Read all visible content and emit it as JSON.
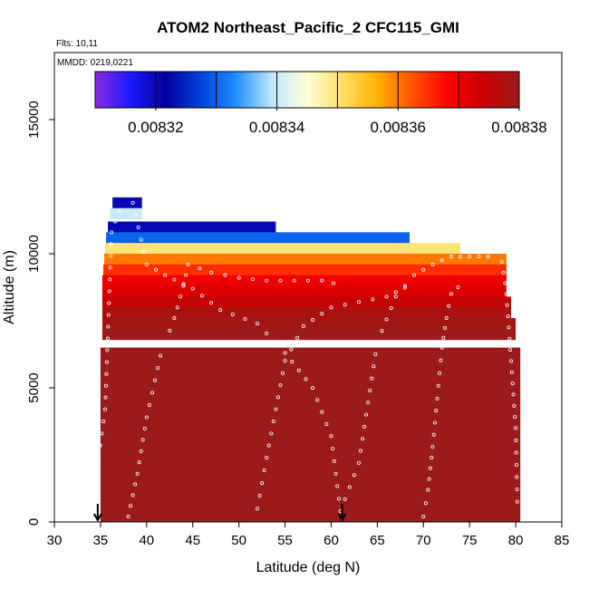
{
  "chart_data": {
    "type": "heatmap",
    "title": "ATOM2 Northeast_Pacific_2 CFC115_GMI",
    "annotations": [
      "Flts: 10,11",
      "MMDD: 0219,0221"
    ],
    "xlabel": "Latitude (deg N)",
    "ylabel": "Altitude (m)",
    "xlim": [
      30,
      85
    ],
    "ylim": [
      0,
      17500
    ],
    "xticks": [
      30,
      35,
      40,
      45,
      50,
      55,
      60,
      65,
      70,
      75,
      80,
      85
    ],
    "yticks": [
      0,
      5000,
      10000,
      15000
    ],
    "grid": false,
    "colorbar": {
      "placement": "top",
      "range": [
        0.00831,
        0.00838
      ],
      "tick_values": [
        0.00832,
        0.00834,
        0.00836,
        0.00838
      ],
      "tick_labels": [
        "0.00832",
        "0.00834",
        "0.00836",
        "0.00838"
      ],
      "colors": [
        "#8a2be2",
        "#1a1aff",
        "#00009a",
        "#0044dd",
        "#1f8fff",
        "#bfe8ff",
        "#ffffd8",
        "#ffe066",
        "#ffb000",
        "#ff5000",
        "#ff0000",
        "#c80000",
        "#9b1b1b"
      ]
    },
    "bulk_value": 0.00838,
    "bulk_region": {
      "lat_min": 35,
      "lat_max": 80.5,
      "alt_min": 0,
      "alt_max": 6500
    },
    "profile_bands": [
      {
        "alt": 11900,
        "lat_min": 36.3,
        "lat_max": 39.5,
        "value": 0.00832
      },
      {
        "alt": 11500,
        "lat_min": 36,
        "lat_max": 39.5,
        "value": 0.00834
      },
      {
        "alt": 11000,
        "lat_min": 35.8,
        "lat_max": 54,
        "value": 0.00832
      },
      {
        "alt": 10600,
        "lat_min": 35.6,
        "lat_max": 68.5,
        "value": 0.00833
      },
      {
        "alt": 10200,
        "lat_min": 35.5,
        "lat_max": 74,
        "value": 0.00835
      },
      {
        "alt": 9800,
        "lat_min": 35.4,
        "lat_max": 79,
        "value": 0.00836
      },
      {
        "alt": 9400,
        "lat_min": 35.3,
        "lat_max": 79,
        "value": 0.008365
      },
      {
        "alt": 9000,
        "lat_min": 35.2,
        "lat_max": 79,
        "value": 0.00837
      },
      {
        "alt": 8600,
        "lat_min": 35.2,
        "lat_max": 79,
        "value": 0.008372
      },
      {
        "alt": 8200,
        "lat_min": 35.2,
        "lat_max": 79.5,
        "value": 0.008375
      },
      {
        "alt": 7800,
        "lat_min": 35.2,
        "lat_max": 79.5,
        "value": 0.008378
      },
      {
        "alt": 7400,
        "lat_min": 35.2,
        "lat_max": 80,
        "value": 0.008379
      },
      {
        "alt": 7000,
        "lat_min": 35.2,
        "lat_max": 80,
        "value": 0.00838
      }
    ],
    "flight_tracks": [
      {
        "points": [
          [
            34.8,
            2400
          ],
          [
            35.5,
            4200
          ],
          [
            36.2,
            10800
          ],
          [
            37,
            11600
          ],
          [
            38.5,
            11900
          ],
          [
            40,
            9600
          ],
          [
            42,
            9200
          ],
          [
            45,
            8700
          ],
          [
            48,
            7900
          ],
          [
            52,
            7400
          ],
          [
            55,
            6300
          ],
          [
            58,
            5000
          ],
          [
            60,
            3200
          ],
          [
            61,
            400
          ]
        ]
      },
      {
        "points": [
          [
            61,
            400
          ],
          [
            63,
            2200
          ],
          [
            65,
            6700
          ],
          [
            67,
            8400
          ],
          [
            69,
            9200
          ],
          [
            71,
            9600
          ],
          [
            73,
            9900
          ],
          [
            75,
            9900
          ],
          [
            77,
            9900
          ],
          [
            78.5,
            9700
          ],
          [
            79,
            8500
          ],
          [
            79.5,
            6000
          ],
          [
            80,
            3500
          ],
          [
            80.2,
            300
          ]
        ]
      },
      {
        "points": [
          [
            38,
            200
          ],
          [
            39,
            1800
          ],
          [
            40,
            3900
          ],
          [
            41.5,
            6200
          ],
          [
            43,
            7600
          ],
          [
            44,
            8800
          ],
          [
            44.5,
            9600
          ],
          [
            47,
            9300
          ],
          [
            50,
            9100
          ],
          [
            53,
            9000
          ],
          [
            56,
            9000
          ],
          [
            59,
            9000
          ],
          [
            61.5,
            8800
          ]
        ]
      },
      {
        "points": [
          [
            70,
            200
          ],
          [
            70.5,
            1200
          ],
          [
            71,
            2800
          ],
          [
            71.5,
            4600
          ],
          [
            72,
            6500
          ],
          [
            72.5,
            7600
          ],
          [
            73,
            8500
          ],
          [
            74.5,
            9000
          ]
        ]
      },
      {
        "points": [
          [
            52,
            500
          ],
          [
            53,
            2400
          ],
          [
            54,
            4200
          ],
          [
            55,
            6000
          ],
          [
            57,
            7300
          ],
          [
            60,
            8000
          ],
          [
            63,
            8200
          ],
          [
            66,
            8400
          ],
          [
            69,
            8900
          ]
        ]
      }
    ],
    "arrows_lat": [
      34.7,
      61.2
    ]
  }
}
